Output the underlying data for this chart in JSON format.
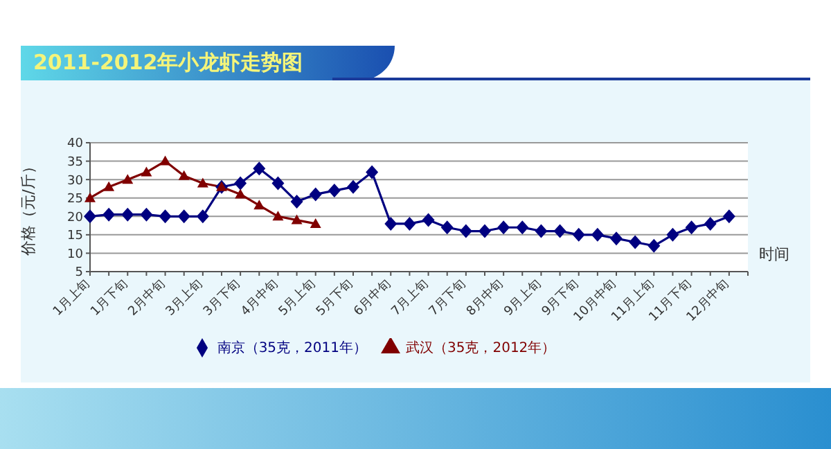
{
  "chart_data": {
    "type": "line",
    "title": "2011-2012年小龙虾走势图",
    "xlabel": "时间",
    "ylabel": "价格（元/斤）",
    "categories": [
      "1月上旬",
      null,
      "1月下旬",
      null,
      "2月中旬",
      null,
      "3月上旬",
      null,
      "3月下旬",
      null,
      "4月中旬",
      null,
      "5月上旬",
      null,
      "5月下旬",
      null,
      "6月中旬",
      null,
      "7月上旬",
      null,
      "7月下旬",
      null,
      "8月中旬",
      null,
      "9月上旬",
      null,
      "9月下旬",
      null,
      "10月中旬",
      null,
      "11月上旬",
      null,
      "11月下旬",
      null,
      "12月中旬",
      null
    ],
    "series": [
      {
        "name": "南京（35克，2011年）",
        "color": "#000080",
        "marker": "diamond",
        "values": [
          20,
          20.5,
          20.5,
          20.5,
          20,
          20,
          20,
          28,
          29,
          33,
          29,
          24,
          26,
          27,
          28,
          32,
          18,
          18,
          19,
          17,
          16,
          16,
          17,
          17,
          16,
          16,
          15,
          15,
          14,
          13,
          12,
          15,
          17,
          18,
          20,
          null
        ]
      },
      {
        "name": "武汉（35克，2012年）",
        "color": "#800000",
        "marker": "triangle",
        "values": [
          25,
          28,
          30,
          32,
          35,
          31,
          29,
          28,
          26,
          23,
          20,
          19,
          18,
          null,
          null,
          null,
          null,
          null,
          null,
          null,
          null,
          null,
          null,
          null,
          null,
          null,
          null,
          null,
          null,
          null,
          null,
          null,
          null,
          null,
          null,
          null
        ]
      }
    ],
    "ylim": [
      5,
      40
    ],
    "yticks": [
      5,
      10,
      15,
      20,
      25,
      30,
      35,
      40
    ],
    "grid": "y",
    "legend": "bottom"
  }
}
